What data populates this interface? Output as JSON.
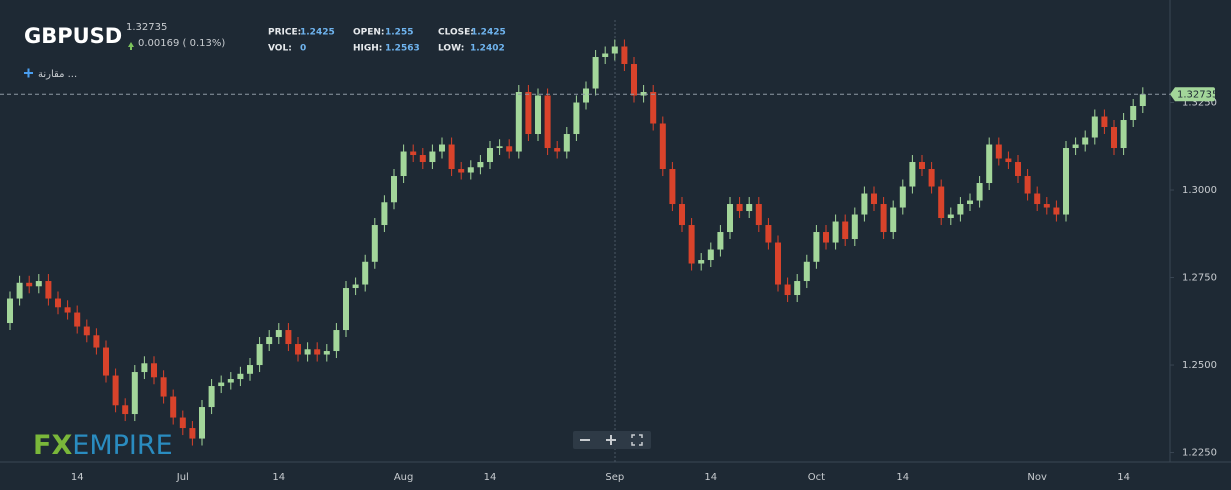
{
  "header": {
    "symbol": "GBPUSD",
    "last": "1.32735",
    "change": "0.00169 ( 0.13%)",
    "fields": [
      {
        "label": "PRICE:",
        "value": "1.2425"
      },
      {
        "label": "OPEN:",
        "value": "1.255"
      },
      {
        "label": "CLOSE:",
        "value": "1.2425"
      },
      {
        "label": "VOL:",
        "value": "0"
      },
      {
        "label": "HIGH:",
        "value": "1.2563"
      },
      {
        "label": "LOW:",
        "value": "1.2402"
      }
    ],
    "compare": "مقارنة ..."
  },
  "logo": {
    "fx": "FX",
    "empire": "EMPIRE"
  },
  "chart_data": {
    "type": "candlestick",
    "up_color": "#a3d69a",
    "down_color": "#d9432b",
    "categories": [
      null,
      null,
      null,
      null,
      null,
      null,
      null,
      "14",
      null,
      null,
      null,
      null,
      null,
      null,
      null,
      null,
      null,
      null,
      "Jul",
      null,
      null,
      null,
      null,
      null,
      null,
      null,
      null,
      null,
      "14",
      null,
      null,
      null,
      null,
      null,
      null,
      null,
      null,
      null,
      null,
      null,
      null,
      "Aug",
      null,
      null,
      null,
      null,
      null,
      null,
      null,
      null,
      "14",
      null,
      null,
      null,
      null,
      null,
      null,
      null,
      null,
      null,
      null,
      null,
      null,
      "Sep",
      null,
      null,
      null,
      null,
      null,
      null,
      null,
      null,
      null,
      "14",
      null,
      null,
      null,
      null,
      null,
      null,
      null,
      null,
      null,
      null,
      "Oct",
      null,
      null,
      null,
      null,
      null,
      null,
      null,
      null,
      "14",
      null,
      null,
      null,
      null,
      null,
      null,
      null,
      null,
      null,
      null,
      null,
      null,
      null,
      "Nov",
      null,
      null,
      null,
      null,
      null,
      null,
      null,
      null,
      "14",
      null,
      null
    ],
    "ohlc": [
      [
        1.262,
        1.271,
        1.26,
        1.269
      ],
      [
        1.269,
        1.2755,
        1.267,
        1.2735
      ],
      [
        1.2735,
        1.2755,
        1.2705,
        1.2725
      ],
      [
        1.2725,
        1.276,
        1.2705,
        1.274
      ],
      [
        1.274,
        1.276,
        1.267,
        1.269
      ],
      [
        1.269,
        1.271,
        1.2645,
        1.2665
      ],
      [
        1.2665,
        1.2685,
        1.263,
        1.265
      ],
      [
        1.265,
        1.267,
        1.259,
        1.261
      ],
      [
        1.261,
        1.263,
        1.2565,
        1.2585
      ],
      [
        1.2585,
        1.2605,
        1.253,
        1.255
      ],
      [
        1.255,
        1.257,
        1.245,
        1.247
      ],
      [
        1.247,
        1.249,
        1.2365,
        1.2385
      ],
      [
        1.2385,
        1.2405,
        1.234,
        1.236
      ],
      [
        1.236,
        1.25,
        1.234,
        1.248
      ],
      [
        1.248,
        1.2525,
        1.246,
        1.2505
      ],
      [
        1.2505,
        1.2525,
        1.2445,
        1.2465
      ],
      [
        1.2465,
        1.2485,
        1.239,
        1.241
      ],
      [
        1.241,
        1.243,
        1.233,
        1.235
      ],
      [
        1.235,
        1.237,
        1.23,
        1.232
      ],
      [
        1.232,
        1.234,
        1.227,
        1.229
      ],
      [
        1.229,
        1.24,
        1.227,
        1.238
      ],
      [
        1.238,
        1.246,
        1.236,
        1.244
      ],
      [
        1.244,
        1.247,
        1.242,
        1.245
      ],
      [
        1.245,
        1.248,
        1.243,
        1.246
      ],
      [
        1.246,
        1.2495,
        1.244,
        1.2475
      ],
      [
        1.2475,
        1.252,
        1.2455,
        1.25
      ],
      [
        1.25,
        1.258,
        1.248,
        1.256
      ],
      [
        1.256,
        1.26,
        1.254,
        1.258
      ],
      [
        1.258,
        1.262,
        1.256,
        1.26
      ],
      [
        1.26,
        1.262,
        1.254,
        1.256
      ],
      [
        1.256,
        1.258,
        1.251,
        1.253
      ],
      [
        1.253,
        1.2565,
        1.251,
        1.2545
      ],
      [
        1.2545,
        1.2565,
        1.251,
        1.253
      ],
      [
        1.253,
        1.256,
        1.251,
        1.254
      ],
      [
        1.254,
        1.262,
        1.252,
        1.26
      ],
      [
        1.26,
        1.274,
        1.258,
        1.272
      ],
      [
        1.272,
        1.275,
        1.27,
        1.273
      ],
      [
        1.273,
        1.2815,
        1.271,
        1.2795
      ],
      [
        1.2795,
        1.292,
        1.2775,
        1.29
      ],
      [
        1.29,
        1.2985,
        1.288,
        1.2965
      ],
      [
        1.2965,
        1.306,
        1.2945,
        1.304
      ],
      [
        1.304,
        1.313,
        1.302,
        1.311
      ],
      [
        1.311,
        1.313,
        1.308,
        1.31
      ],
      [
        1.31,
        1.312,
        1.306,
        1.308
      ],
      [
        1.308,
        1.313,
        1.306,
        1.311
      ],
      [
        1.311,
        1.315,
        1.309,
        1.313
      ],
      [
        1.313,
        1.315,
        1.304,
        1.306
      ],
      [
        1.306,
        1.308,
        1.303,
        1.305
      ],
      [
        1.305,
        1.3085,
        1.303,
        1.3065
      ],
      [
        1.3065,
        1.31,
        1.3045,
        1.308
      ],
      [
        1.308,
        1.314,
        1.306,
        1.312
      ],
      [
        1.312,
        1.3145,
        1.31,
        1.3125
      ],
      [
        1.3125,
        1.3145,
        1.309,
        1.311
      ],
      [
        1.311,
        1.33,
        1.309,
        1.328
      ],
      [
        1.328,
        1.33,
        1.314,
        1.316
      ],
      [
        1.316,
        1.329,
        1.314,
        1.327
      ],
      [
        1.327,
        1.329,
        1.31,
        1.312
      ],
      [
        1.312,
        1.314,
        1.309,
        1.311
      ],
      [
        1.311,
        1.318,
        1.309,
        1.316
      ],
      [
        1.316,
        1.327,
        1.314,
        1.325
      ],
      [
        1.325,
        1.331,
        1.323,
        1.329
      ],
      [
        1.329,
        1.34,
        1.327,
        1.338
      ],
      [
        1.338,
        1.341,
        1.336,
        1.339
      ],
      [
        1.339,
        1.343,
        1.337,
        1.341
      ],
      [
        1.341,
        1.343,
        1.334,
        1.336
      ],
      [
        1.336,
        1.338,
        1.325,
        1.327
      ],
      [
        1.327,
        1.33,
        1.325,
        1.328
      ],
      [
        1.328,
        1.33,
        1.317,
        1.319
      ],
      [
        1.319,
        1.321,
        1.304,
        1.306
      ],
      [
        1.306,
        1.308,
        1.294,
        1.296
      ],
      [
        1.296,
        1.298,
        1.288,
        1.29
      ],
      [
        1.29,
        1.292,
        1.277,
        1.279
      ],
      [
        1.279,
        1.282,
        1.277,
        1.28
      ],
      [
        1.28,
        1.285,
        1.278,
        1.283
      ],
      [
        1.283,
        1.29,
        1.281,
        1.288
      ],
      [
        1.288,
        1.298,
        1.286,
        1.296
      ],
      [
        1.296,
        1.298,
        1.292,
        1.294
      ],
      [
        1.294,
        1.298,
        1.292,
        1.296
      ],
      [
        1.296,
        1.298,
        1.288,
        1.29
      ],
      [
        1.29,
        1.292,
        1.283,
        1.285
      ],
      [
        1.285,
        1.287,
        1.271,
        1.273
      ],
      [
        1.273,
        1.275,
        1.268,
        1.27
      ],
      [
        1.27,
        1.276,
        1.268,
        1.274
      ],
      [
        1.274,
        1.2815,
        1.272,
        1.2795
      ],
      [
        1.2795,
        1.29,
        1.2775,
        1.288
      ],
      [
        1.288,
        1.29,
        1.283,
        1.285
      ],
      [
        1.285,
        1.293,
        1.283,
        1.291
      ],
      [
        1.291,
        1.293,
        1.284,
        1.286
      ],
      [
        1.286,
        1.295,
        1.284,
        1.293
      ],
      [
        1.293,
        1.301,
        1.291,
        1.299
      ],
      [
        1.299,
        1.301,
        1.294,
        1.296
      ],
      [
        1.296,
        1.298,
        1.286,
        1.288
      ],
      [
        1.288,
        1.297,
        1.286,
        1.295
      ],
      [
        1.295,
        1.303,
        1.293,
        1.301
      ],
      [
        1.301,
        1.31,
        1.299,
        1.308
      ],
      [
        1.308,
        1.31,
        1.304,
        1.306
      ],
      [
        1.306,
        1.308,
        1.299,
        1.301
      ],
      [
        1.301,
        1.303,
        1.29,
        1.292
      ],
      [
        1.292,
        1.295,
        1.29,
        1.293
      ],
      [
        1.293,
        1.298,
        1.291,
        1.296
      ],
      [
        1.296,
        1.299,
        1.294,
        1.297
      ],
      [
        1.297,
        1.304,
        1.295,
        1.302
      ],
      [
        1.302,
        1.315,
        1.3,
        1.313
      ],
      [
        1.313,
        1.315,
        1.307,
        1.309
      ],
      [
        1.309,
        1.311,
        1.306,
        1.308
      ],
      [
        1.308,
        1.31,
        1.302,
        1.304
      ],
      [
        1.304,
        1.306,
        1.297,
        1.299
      ],
      [
        1.299,
        1.301,
        1.294,
        1.296
      ],
      [
        1.296,
        1.298,
        1.293,
        1.295
      ],
      [
        1.295,
        1.297,
        1.291,
        1.293
      ],
      [
        1.293,
        1.314,
        1.291,
        1.312
      ],
      [
        1.312,
        1.315,
        1.31,
        1.313
      ],
      [
        1.313,
        1.317,
        1.311,
        1.315
      ],
      [
        1.315,
        1.323,
        1.313,
        1.321
      ],
      [
        1.321,
        1.323,
        1.316,
        1.318
      ],
      [
        1.318,
        1.32,
        1.31,
        1.312
      ],
      [
        1.312,
        1.322,
        1.31,
        1.32
      ],
      [
        1.32,
        1.326,
        1.318,
        1.324
      ],
      [
        1.324,
        1.32935,
        1.322,
        1.32735
      ]
    ],
    "last_price": 1.32735,
    "ylim": [
      1.2223,
      1.35
    ],
    "yticks": [
      {
        "value": 1.225,
        "label": "1.2250"
      },
      {
        "value": 1.25,
        "label": "1.2500"
      },
      {
        "value": 1.275,
        "label": "1.2750"
      },
      {
        "value": 1.3,
        "label": "1.3000"
      },
      {
        "value": 1.325,
        "label": "1.3250"
      }
    ]
  }
}
